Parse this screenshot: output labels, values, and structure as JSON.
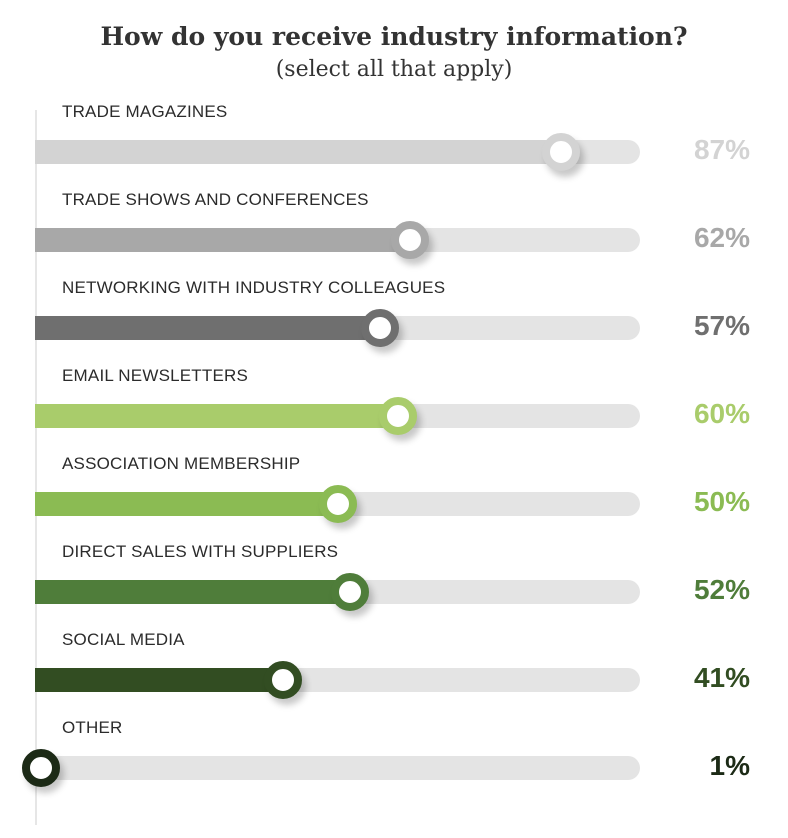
{
  "chart_data": {
    "type": "bar",
    "title": "How do you receive industry information?",
    "subtitle": "(select all that apply)",
    "xlim": [
      0,
      100
    ],
    "categories": [
      "TRADE MAGAZINES",
      "TRADE SHOWS AND CONFERENCES",
      "NETWORKING WITH INDUSTRY COLLEAGUES",
      "EMAIL NEWSLETTERS",
      "ASSOCIATION MEMBERSHIP",
      "DIRECT SALES WITH SUPPLIERS",
      "SOCIAL MEDIA",
      "OTHER"
    ],
    "values": [
      87,
      62,
      57,
      60,
      50,
      52,
      41,
      1
    ],
    "value_labels": [
      "87%",
      "62%",
      "57%",
      "60%",
      "50%",
      "52%",
      "41%",
      "1%"
    ],
    "colors": [
      "#d3d3d3",
      "#a8a8a8",
      "#6f6f6f",
      "#a9cc6b",
      "#8bbb53",
      "#4f7d3a",
      "#324d22",
      "#1c2a16"
    ],
    "track_color": "#e4e4e4",
    "grid": false,
    "legend": "none"
  }
}
